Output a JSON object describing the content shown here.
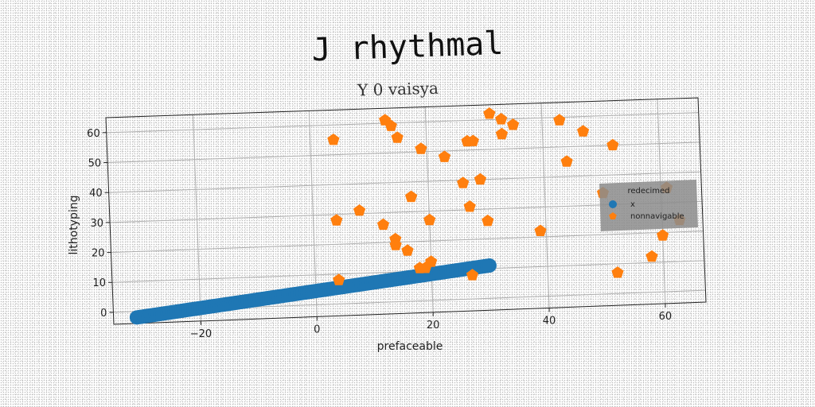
{
  "chart_data": {
    "type": "scatter",
    "title": "J rhythmal",
    "subtitle": "Y 0 vaisya",
    "xlabel": "prefaceable",
    "ylabel": "lithotyping",
    "xlim": [
      -35,
      67
    ],
    "ylim": [
      -4,
      65
    ],
    "xticks": [
      -20,
      0,
      20,
      40,
      60
    ],
    "yticks": [
      0,
      10,
      20,
      30,
      40,
      50,
      60
    ],
    "grid": true,
    "legend": {
      "title": "redecimed",
      "placement": "right"
    },
    "series": [
      {
        "name": "x",
        "color": "#1f77b4",
        "marker": "circle",
        "line_from": [
          -31,
          -2
        ],
        "line_to": [
          30,
          11
        ],
        "line_points": 150
      },
      {
        "name": "nonnavigable",
        "color": "#ff7f0e",
        "marker": "pentagon",
        "points": [
          [
            4,
            55
          ],
          [
            13,
            61
          ],
          [
            14,
            59
          ],
          [
            15,
            55
          ],
          [
            19,
            51
          ],
          [
            23,
            48
          ],
          [
            27,
            53
          ],
          [
            28,
            53
          ],
          [
            31,
            62
          ],
          [
            33,
            60
          ],
          [
            33,
            55
          ],
          [
            35,
            58
          ],
          [
            43,
            59
          ],
          [
            47,
            55
          ],
          [
            52,
            50
          ],
          [
            44,
            45
          ],
          [
            26,
            39
          ],
          [
            29,
            40
          ],
          [
            17,
            35
          ],
          [
            27,
            31
          ],
          [
            20,
            27
          ],
          [
            30,
            26
          ],
          [
            8,
            31
          ],
          [
            4,
            28
          ],
          [
            12,
            26
          ],
          [
            14,
            21
          ],
          [
            14,
            19
          ],
          [
            16,
            17
          ],
          [
            20,
            13
          ],
          [
            18,
            11
          ],
          [
            19,
            11
          ],
          [
            4,
            8
          ],
          [
            27,
            8
          ],
          [
            39,
            22
          ],
          [
            50,
            34
          ],
          [
            61,
            35
          ],
          [
            63,
            24
          ],
          [
            60,
            19
          ],
          [
            58,
            12
          ],
          [
            52,
            7
          ]
        ]
      }
    ]
  }
}
